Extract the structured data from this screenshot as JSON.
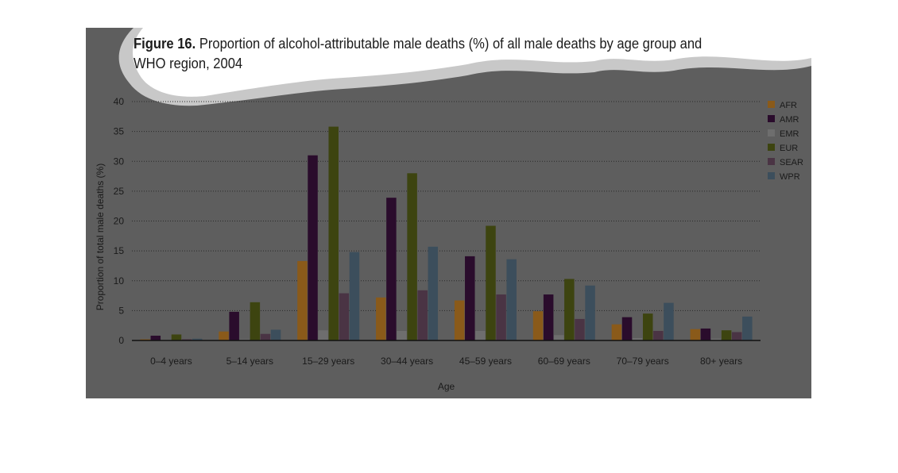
{
  "figure": {
    "title_bold": "Figure 16.",
    "title_rest": " Proportion of alcohol-attributable male deaths (%) of all male deaths by age group and WHO region, 2004"
  },
  "colors": {
    "panel_background": "#5e5e5e",
    "AFR": "#8a5a1a",
    "AMR": "#2a0c2c",
    "EMR": "#6e6e6e",
    "EUR": "#3d4410",
    "SEAR": "#4a3444",
    "WPR": "#3c4e5c"
  },
  "chart_data": {
    "type": "bar",
    "title": "Proportion of alcohol-attributable male deaths (%) of all male deaths by age group and WHO region, 2004",
    "xlabel": "Age",
    "ylabel": "Proportion of total male deaths (%)",
    "ylim": [
      0,
      40
    ],
    "yticks": [
      0,
      5,
      10,
      15,
      20,
      25,
      30,
      35,
      40
    ],
    "grid": true,
    "legend_position": "right",
    "categories": [
      "0–4 years",
      "5–14 years",
      "15–29 years",
      "30–44 years",
      "45–59 years",
      "60–69 years",
      "70–79 years",
      "80+ years"
    ],
    "series": [
      {
        "name": "AFR",
        "values": [
          0.2,
          1.5,
          13.3,
          7.2,
          6.7,
          4.9,
          2.7,
          1.9
        ]
      },
      {
        "name": "AMR",
        "values": [
          0.8,
          4.8,
          31.0,
          23.9,
          14.1,
          7.7,
          3.9,
          2.0
        ]
      },
      {
        "name": "EMR",
        "values": [
          0.1,
          0.2,
          1.7,
          1.6,
          1.6,
          0.9,
          0.4,
          0.3
        ]
      },
      {
        "name": "EUR",
        "values": [
          1.0,
          6.4,
          35.8,
          28.0,
          19.2,
          10.3,
          4.5,
          1.7
        ]
      },
      {
        "name": "SEAR",
        "values": [
          0.2,
          1.1,
          7.9,
          8.4,
          7.7,
          3.6,
          1.6,
          1.4
        ]
      },
      {
        "name": "WPR",
        "values": [
          0.3,
          1.8,
          14.8,
          15.7,
          13.6,
          9.2,
          6.3,
          4.0
        ]
      }
    ]
  }
}
